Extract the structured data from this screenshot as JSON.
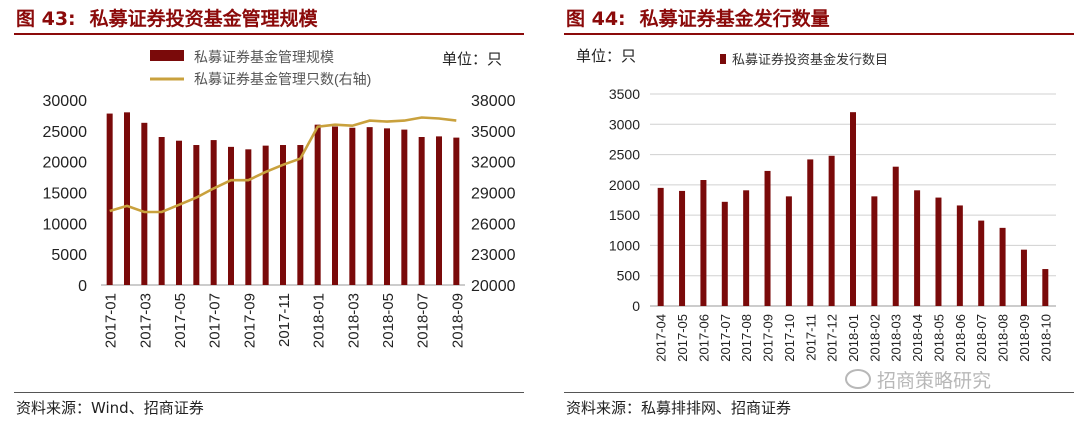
{
  "figures": [
    {
      "label": "图 43:",
      "title": "私募证券投资基金管理规模",
      "unit": "单位：只",
      "source": "资料来源：Wind、招商证券"
    },
    {
      "label": "图 44:",
      "title": "私募证券基金发行数量",
      "unit": "单位：只",
      "source": "资料来源：私募排排网、招商证券"
    }
  ],
  "watermark": "招商策略研究",
  "colors": {
    "bar": "#7a0a0a",
    "line": "#c9a13d",
    "title": "#8b0a0a",
    "grid": "#d0d0d0"
  },
  "chart_data": [
    {
      "type": "bar",
      "categories": [
        "2017-01",
        "2017-02",
        "2017-03",
        "2017-04",
        "2017-05",
        "2017-06",
        "2017-07",
        "2017-08",
        "2017-09",
        "2017-10",
        "2017-11",
        "2017-12",
        "2018-01",
        "2018-02",
        "2018-03",
        "2018-04",
        "2018-05",
        "2018-06",
        "2018-07",
        "2018-08",
        "2018-09"
      ],
      "tick_labels": [
        "2017-01",
        "2017-03",
        "2017-05",
        "2017-07",
        "2017-09",
        "2017-11",
        "2018-01",
        "2018-03",
        "2018-05",
        "2018-07",
        "2018-09"
      ],
      "series": [
        {
          "name": "私募证券基金管理规模",
          "kind": "bar",
          "axis": "left",
          "values": [
            27800,
            28000,
            26300,
            24000,
            23400,
            22700,
            23500,
            22400,
            22000,
            22600,
            22700,
            22700,
            26000,
            25700,
            25500,
            25600,
            25400,
            25200,
            24000,
            24100,
            23900
          ]
        },
        {
          "name": "私募证券基金管理只数(右轴)",
          "kind": "line",
          "axis": "right",
          "values": [
            27200,
            27700,
            27100,
            27100,
            27800,
            28500,
            29400,
            30200,
            30200,
            31000,
            31700,
            32300,
            35400,
            35600,
            35500,
            36000,
            35900,
            36000,
            36300,
            36200,
            36000
          ]
        }
      ],
      "ylim": [
        0,
        30000
      ],
      "yticks": [
        0,
        5000,
        10000,
        15000,
        20000,
        25000,
        30000
      ],
      "y2lim": [
        20000,
        38000
      ],
      "y2ticks": [
        20000,
        23000,
        26000,
        29000,
        32000,
        35000,
        38000
      ],
      "legend": "top"
    },
    {
      "type": "bar",
      "categories": [
        "2017-04",
        "2017-05",
        "2017-06",
        "2017-07",
        "2017-08",
        "2017-09",
        "2017-10",
        "2017-11",
        "2017-12",
        "2018-01",
        "2018-02",
        "2018-03",
        "2018-04",
        "2018-05",
        "2018-06",
        "2018-07",
        "2018-08",
        "2018-09",
        "2018-10"
      ],
      "series": [
        {
          "name": "私募证券投资基金发行数目",
          "values": [
            1950,
            1900,
            2080,
            1720,
            1910,
            2230,
            1810,
            2420,
            2480,
            3200,
            1810,
            2300,
            1910,
            1790,
            1660,
            1410,
            1290,
            930,
            610
          ]
        }
      ],
      "ylim": [
        0,
        3500
      ],
      "yticks": [
        0,
        500,
        1000,
        1500,
        2000,
        2500,
        3000,
        3500
      ],
      "grid": true,
      "legend": "top"
    }
  ]
}
